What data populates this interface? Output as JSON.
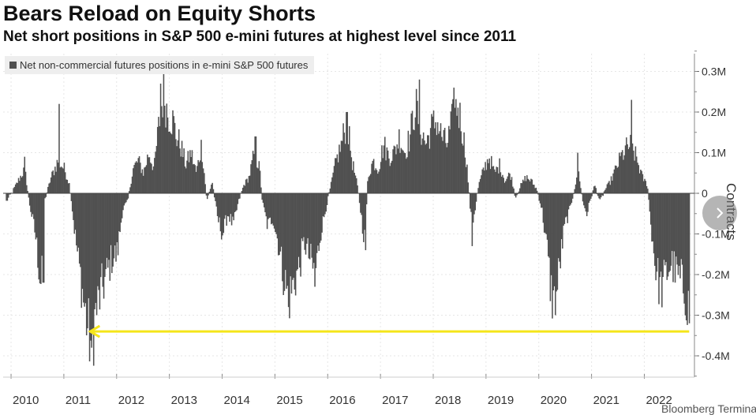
{
  "chart_data": {
    "type": "bar",
    "title": "Bears Reload on Equity Shorts",
    "subtitle": "Net short positions in S&P 500 e-mini futures at highest level since 2011",
    "legend": {
      "label": "Net non-commercial futures positions in e-mini S&P 500 futures",
      "placement": "top-left"
    },
    "ylabel": "Contracts",
    "xlabel": "",
    "ylim": [
      -0.45,
      0.35
    ],
    "y_ticks": [
      {
        "value": 0.3,
        "label": "0.3M"
      },
      {
        "value": 0.2,
        "label": "0.2M"
      },
      {
        "value": 0.1,
        "label": "0.1M"
      },
      {
        "value": 0,
        "label": "0"
      },
      {
        "value": -0.1,
        "label": "-0.1M"
      },
      {
        "value": -0.2,
        "label": "-0.2M"
      },
      {
        "value": -0.3,
        "label": "-0.3M"
      },
      {
        "value": -0.4,
        "label": "-0.4M"
      }
    ],
    "x_ticks": [
      "2010",
      "2011",
      "2012",
      "2013",
      "2014",
      "2015",
      "2016",
      "2017",
      "2018",
      "2019",
      "2020",
      "2021",
      "2022"
    ],
    "xlim": [
      2009.85,
      2022.95
    ],
    "grid": true,
    "series": [
      {
        "name": "Net non-commercial futures positions in e-mini S&P 500 futures",
        "color": "#505050",
        "anchors": [
          [
            2009.9,
            -0.02
          ],
          [
            2010.0,
            0.0
          ],
          [
            2010.12,
            0.03
          ],
          [
            2010.25,
            0.06
          ],
          [
            2010.33,
            -0.02
          ],
          [
            2010.45,
            -0.1
          ],
          [
            2010.55,
            -0.22
          ],
          [
            2010.62,
            -0.02
          ],
          [
            2010.75,
            0.04
          ],
          [
            2010.88,
            0.08
          ],
          [
            2011.0,
            0.06
          ],
          [
            2011.1,
            0.02
          ],
          [
            2011.2,
            -0.1
          ],
          [
            2011.3,
            -0.2
          ],
          [
            2011.38,
            -0.28
          ],
          [
            2011.45,
            -0.34
          ],
          [
            2011.52,
            -0.38
          ],
          [
            2011.58,
            -0.3
          ],
          [
            2011.7,
            -0.24
          ],
          [
            2011.8,
            -0.2
          ],
          [
            2011.9,
            -0.16
          ],
          [
            2012.0,
            -0.15
          ],
          [
            2012.1,
            -0.04
          ],
          [
            2012.2,
            -0.02
          ],
          [
            2012.3,
            0.06
          ],
          [
            2012.4,
            0.08
          ],
          [
            2012.5,
            0.05
          ],
          [
            2012.6,
            0.1
          ],
          [
            2012.7,
            0.06
          ],
          [
            2012.8,
            0.18
          ],
          [
            2012.88,
            0.25
          ],
          [
            2012.95,
            0.2
          ],
          [
            2013.05,
            0.18
          ],
          [
            2013.12,
            0.14
          ],
          [
            2013.2,
            0.12
          ],
          [
            2013.3,
            0.07
          ],
          [
            2013.4,
            0.1
          ],
          [
            2013.5,
            0.05
          ],
          [
            2013.6,
            0.12
          ],
          [
            2013.7,
            -0.02
          ],
          [
            2013.8,
            0.03
          ],
          [
            2013.9,
            -0.06
          ],
          [
            2014.0,
            -0.1
          ],
          [
            2014.1,
            -0.05
          ],
          [
            2014.2,
            -0.08
          ],
          [
            2014.3,
            -0.02
          ],
          [
            2014.4,
            0.02
          ],
          [
            2014.5,
            0.04
          ],
          [
            2014.6,
            0.1
          ],
          [
            2014.7,
            0.06
          ],
          [
            2014.75,
            -0.02
          ],
          [
            2014.85,
            -0.08
          ],
          [
            2014.95,
            -0.06
          ],
          [
            2015.05,
            -0.12
          ],
          [
            2015.15,
            -0.2
          ],
          [
            2015.25,
            -0.26
          ],
          [
            2015.35,
            -0.22
          ],
          [
            2015.45,
            -0.18
          ],
          [
            2015.55,
            -0.12
          ],
          [
            2015.65,
            -0.16
          ],
          [
            2015.75,
            -0.2
          ],
          [
            2015.85,
            -0.1
          ],
          [
            2015.95,
            -0.04
          ],
          [
            2016.05,
            0.02
          ],
          [
            2016.15,
            0.08
          ],
          [
            2016.25,
            0.12
          ],
          [
            2016.35,
            0.18
          ],
          [
            2016.45,
            0.08
          ],
          [
            2016.55,
            0.02
          ],
          [
            2016.65,
            -0.08
          ],
          [
            2016.7,
            -0.12
          ],
          [
            2016.75,
            0.04
          ],
          [
            2016.85,
            0.08
          ],
          [
            2016.95,
            0.06
          ],
          [
            2017.05,
            0.12
          ],
          [
            2017.15,
            0.09
          ],
          [
            2017.25,
            0.1
          ],
          [
            2017.35,
            0.14
          ],
          [
            2017.45,
            0.1
          ],
          [
            2017.55,
            0.14
          ],
          [
            2017.65,
            0.22
          ],
          [
            2017.75,
            0.16
          ],
          [
            2017.85,
            0.12
          ],
          [
            2017.95,
            0.16
          ],
          [
            2018.05,
            0.18
          ],
          [
            2018.15,
            0.14
          ],
          [
            2018.25,
            0.12
          ],
          [
            2018.35,
            0.18
          ],
          [
            2018.45,
            0.22
          ],
          [
            2018.55,
            0.15
          ],
          [
            2018.62,
            0.08
          ],
          [
            2018.68,
            -0.02
          ],
          [
            2018.72,
            -0.08
          ],
          [
            2018.78,
            -0.04
          ],
          [
            2018.85,
            0.02
          ],
          [
            2018.95,
            0.06
          ],
          [
            2019.05,
            0.09
          ],
          [
            2019.15,
            0.05
          ],
          [
            2019.25,
            0.07
          ],
          [
            2019.35,
            0.03
          ],
          [
            2019.45,
            0.05
          ],
          [
            2019.55,
            -0.01
          ],
          [
            2019.65,
            0.02
          ],
          [
            2019.75,
            0.04
          ],
          [
            2019.85,
            0.03
          ],
          [
            2019.95,
            0.01
          ],
          [
            2020.05,
            -0.04
          ],
          [
            2020.15,
            -0.14
          ],
          [
            2020.22,
            -0.24
          ],
          [
            2020.3,
            -0.28
          ],
          [
            2020.38,
            -0.18
          ],
          [
            2020.48,
            -0.08
          ],
          [
            2020.58,
            -0.04
          ],
          [
            2020.68,
            0.02
          ],
          [
            2020.75,
            0.05
          ],
          [
            2020.82,
            -0.02
          ],
          [
            2020.9,
            -0.05
          ],
          [
            2020.98,
            -0.01
          ],
          [
            2021.05,
            0.02
          ],
          [
            2021.15,
            -0.02
          ],
          [
            2021.25,
            0.01
          ],
          [
            2021.35,
            0.03
          ],
          [
            2021.45,
            0.06
          ],
          [
            2021.55,
            0.09
          ],
          [
            2021.65,
            0.11
          ],
          [
            2021.72,
            0.12
          ],
          [
            2021.8,
            0.1
          ],
          [
            2021.88,
            0.07
          ],
          [
            2021.95,
            0.04
          ],
          [
            2022.05,
            0.02
          ],
          [
            2022.1,
            -0.06
          ],
          [
            2022.2,
            -0.18
          ],
          [
            2022.3,
            -0.24
          ],
          [
            2022.4,
            -0.2
          ],
          [
            2022.5,
            -0.17
          ],
          [
            2022.6,
            -0.2
          ],
          [
            2022.7,
            -0.22
          ],
          [
            2022.78,
            -0.25
          ],
          [
            2022.84,
            -0.3
          ]
        ],
        "spikes": [
          [
            2010.25,
            0.09
          ],
          [
            2010.6,
            -0.22
          ],
          [
            2010.9,
            0.22
          ],
          [
            2011.52,
            -0.38
          ],
          [
            2012.82,
            0.27
          ],
          [
            2013.08,
            0.19
          ],
          [
            2014.62,
            0.14
          ],
          [
            2015.25,
            -0.28
          ],
          [
            2015.75,
            -0.23
          ],
          [
            2016.35,
            0.2
          ],
          [
            2016.7,
            -0.14
          ],
          [
            2017.72,
            0.28
          ],
          [
            2018.38,
            0.26
          ],
          [
            2018.72,
            -0.13
          ],
          [
            2020.3,
            -0.3
          ],
          [
            2020.72,
            0.1
          ],
          [
            2021.75,
            0.23
          ],
          [
            2022.84,
            -0.32
          ]
        ]
      }
    ],
    "annotation": {
      "type": "arrow",
      "from_x": 2022.85,
      "to_x": 2011.5,
      "y": -0.34,
      "color": "#f5e51a"
    }
  },
  "ui": {
    "next_icon": "chevron-right-icon",
    "credit": "Bloomberg Terminal"
  }
}
